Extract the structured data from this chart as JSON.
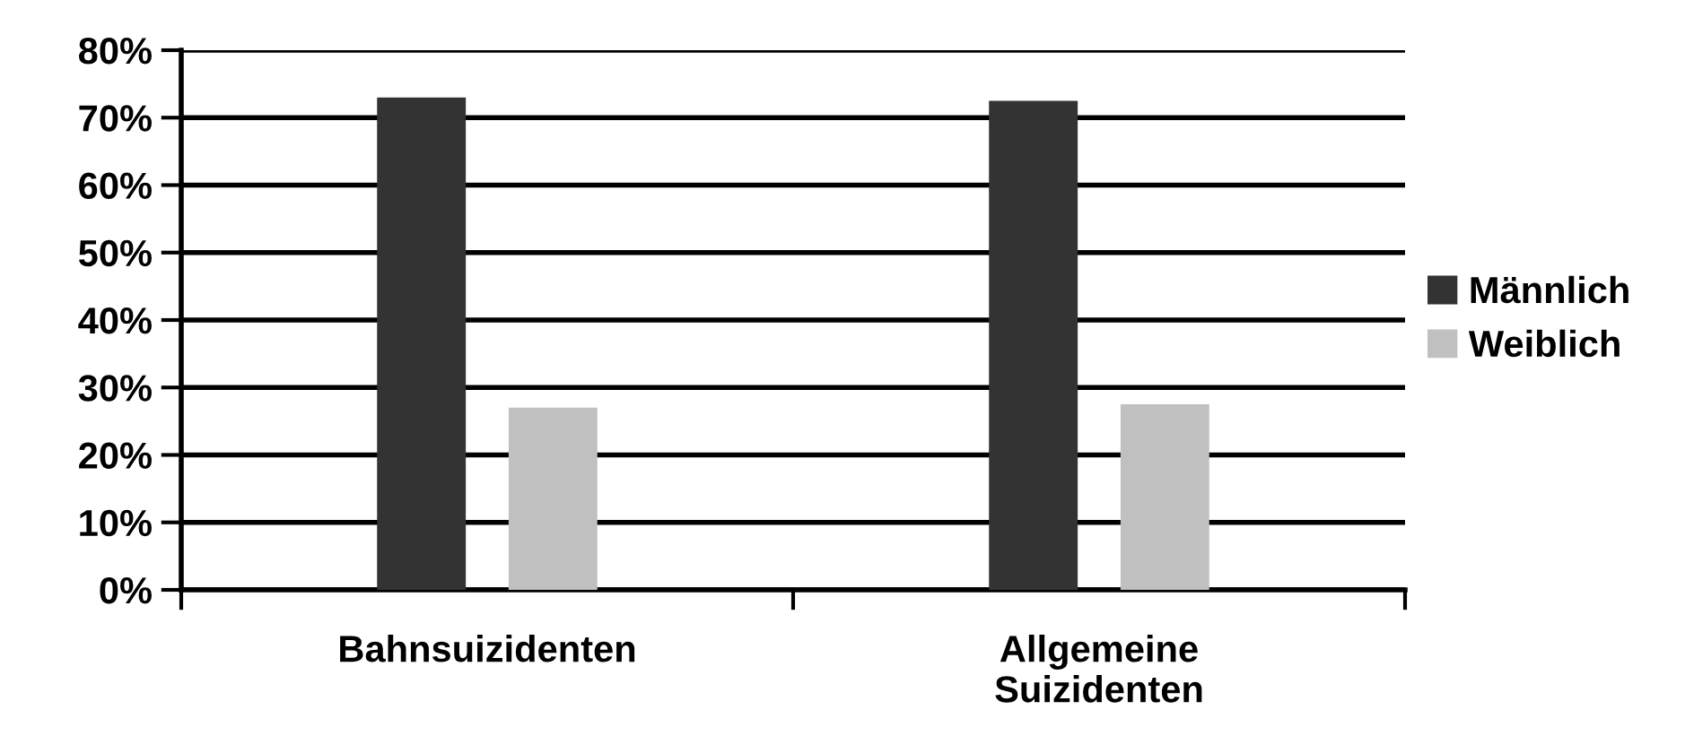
{
  "chart_data": {
    "type": "bar",
    "categories": [
      "Bahnsuizidenten",
      "Allgemeine\nSuizidenten"
    ],
    "series": [
      {
        "name": "Männlich",
        "color": "#333333",
        "values": [
          73,
          72.5
        ]
      },
      {
        "name": "Weiblich",
        "color": "#c0c0c0",
        "values": [
          27,
          27.5
        ]
      }
    ],
    "ylim": [
      0,
      80
    ],
    "yticks": [
      {
        "value": 0,
        "label": "0%"
      },
      {
        "value": 10,
        "label": "10%"
      },
      {
        "value": 20,
        "label": "20%"
      },
      {
        "value": 30,
        "label": "30%"
      },
      {
        "value": 40,
        "label": "40%"
      },
      {
        "value": 50,
        "label": "50%"
      },
      {
        "value": 60,
        "label": "60%"
      },
      {
        "value": 70,
        "label": "70%"
      },
      {
        "value": 80,
        "label": "80%"
      }
    ],
    "grid": "y",
    "legend": "right"
  }
}
